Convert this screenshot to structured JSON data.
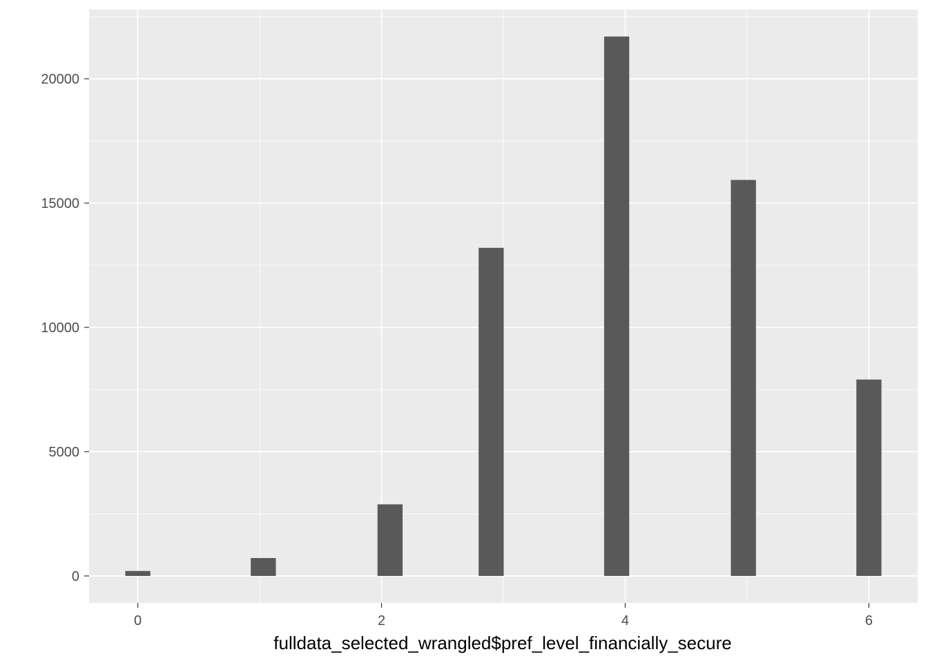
{
  "chart_data": {
    "type": "bar",
    "title": "",
    "xlabel": "fulldata_selected_wrangled$pref_level_financially_secure",
    "ylabel": "",
    "xlim": [
      -0.4,
      6.4
    ],
    "ylim": [
      -1085,
      22780
    ],
    "x_ticks": [
      0,
      2,
      4,
      6
    ],
    "y_ticks": [
      0,
      5000,
      10000,
      15000,
      20000
    ],
    "x_tick_labels": [
      "0",
      "2",
      "4",
      "6"
    ],
    "y_tick_labels": [
      "0",
      "5000",
      "10000",
      "15000",
      "20000"
    ],
    "bar_width": 0.206,
    "bars": [
      {
        "x": 0.0,
        "value": 200
      },
      {
        "x": 1.03,
        "value": 720
      },
      {
        "x": 2.07,
        "value": 2880
      },
      {
        "x": 2.9,
        "value": 13200
      },
      {
        "x": 3.93,
        "value": 21700
      },
      {
        "x": 4.97,
        "value": 15930
      },
      {
        "x": 6.0,
        "value": 7900
      }
    ],
    "grid": true,
    "legend": "none",
    "colors": {
      "panel_background": "#ebebeb",
      "grid_major": "#ffffff",
      "bar_fill": "#595959",
      "tick_text": "#4d4d4d",
      "tick_mark": "#333333"
    }
  }
}
